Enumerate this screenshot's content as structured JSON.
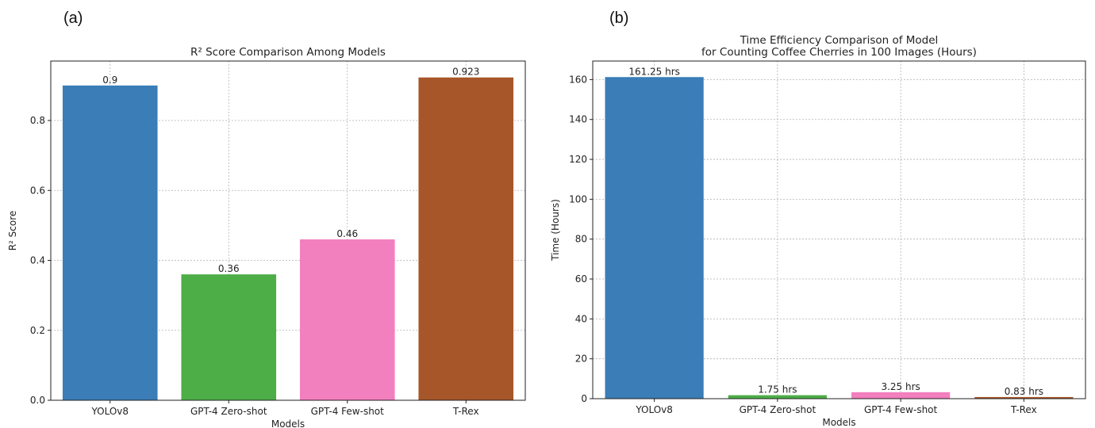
{
  "panels": {
    "a_label": "(a)",
    "b_label": "(b)"
  },
  "chart_data": [
    {
      "type": "bar",
      "title": "R² Score Comparison Among Models",
      "xlabel": "Models",
      "ylabel": "R² Score",
      "categories": [
        "YOLOv8",
        "GPT-4 Zero-shot",
        "GPT-4 Few-shot",
        "T-Rex"
      ],
      "values": [
        0.9,
        0.36,
        0.46,
        0.923
      ],
      "data_labels": [
        "0.9",
        "0.36",
        "0.46",
        "0.923"
      ],
      "colors": [
        "#3a7db7",
        "#4dae47",
        "#f27fbe",
        "#a65628"
      ],
      "ylim": [
        0,
        0.97
      ],
      "yticks": [
        0.0,
        0.2,
        0.4,
        0.6,
        0.8
      ],
      "ytick_labels": [
        "0.0",
        "0.2",
        "0.4",
        "0.6",
        "0.8"
      ],
      "grid": true
    },
    {
      "type": "bar",
      "title": "Time Efficiency Comparison of Model\nfor Counting Coffee Cherries in 100 Images (Hours)",
      "xlabel": "Models",
      "ylabel": "Time (Hours)",
      "categories": [
        "YOLOv8",
        "GPT-4 Zero-shot",
        "GPT-4 Few-shot",
        "T-Rex"
      ],
      "values": [
        161.25,
        1.75,
        3.25,
        0.83
      ],
      "data_labels": [
        "161.25 hrs",
        "1.75 hrs",
        "3.25 hrs",
        "0.83 hrs"
      ],
      "colors": [
        "#3a7db7",
        "#4dae47",
        "#f27fbe",
        "#a65628"
      ],
      "ylim": [
        0,
        169.3
      ],
      "yticks": [
        0,
        20,
        40,
        60,
        80,
        100,
        120,
        140,
        160
      ],
      "ytick_labels": [
        "0",
        "20",
        "40",
        "60",
        "80",
        "100",
        "120",
        "140",
        "160"
      ],
      "grid": true
    }
  ]
}
